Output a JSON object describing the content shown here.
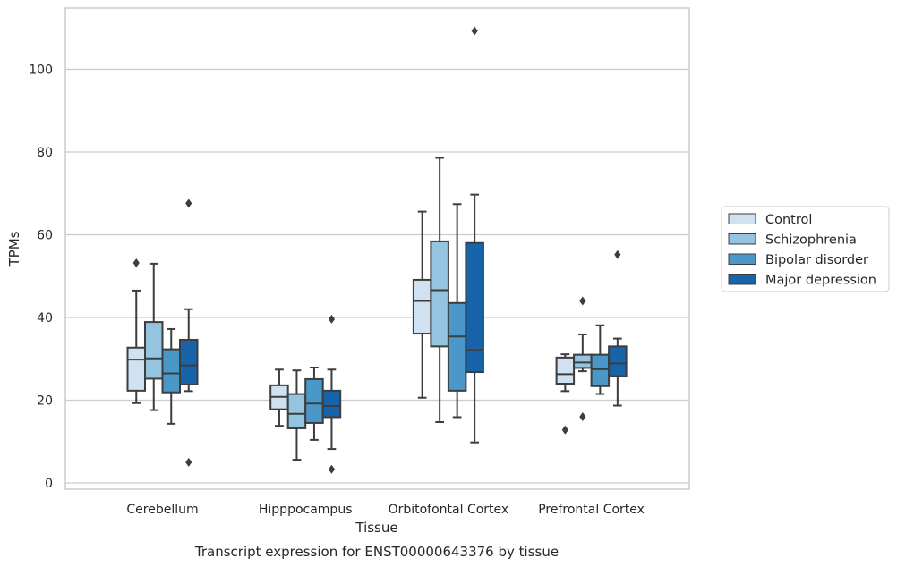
{
  "chart_data": {
    "type": "boxplot",
    "title": "Transcript expression for ENST00000643376 by tissue",
    "xlabel": "Tissue",
    "ylabel": "TPMs",
    "ylim": [
      -1.5,
      114
    ],
    "yticks": [
      0,
      20,
      40,
      60,
      80,
      100
    ],
    "grid": "y",
    "legend_placement": "right",
    "categories": [
      "Cerebellum",
      "Hipppocampus",
      "Orbitofontal Cortex",
      "Prefrontal Cortex"
    ],
    "series": [
      {
        "name": "Control",
        "color": "#d0e1f2",
        "boxes": [
          {
            "whisker_low": 19.3,
            "q1": 22.3,
            "median": 29.8,
            "q3": 32.7,
            "whisker_high": 46.5,
            "outliers": [
              53.2
            ]
          },
          {
            "whisker_low": 13.8,
            "q1": 17.8,
            "median": 20.8,
            "q3": 23.6,
            "whisker_high": 27.4,
            "outliers": []
          },
          {
            "whisker_low": 20.6,
            "q1": 36.1,
            "median": 44.0,
            "q3": 49.1,
            "whisker_high": 65.6,
            "outliers": []
          },
          {
            "whisker_low": 22.2,
            "q1": 24.0,
            "median": 26.3,
            "q3": 30.3,
            "whisker_high": 31.1,
            "outliers": [
              12.8
            ]
          }
        ]
      },
      {
        "name": "Schizophrenia",
        "color": "#94c4df",
        "boxes": [
          {
            "whisker_low": 17.6,
            "q1": 25.2,
            "median": 30.1,
            "q3": 38.9,
            "whisker_high": 53.0,
            "outliers": []
          },
          {
            "whisker_low": 5.6,
            "q1": 13.2,
            "median": 16.7,
            "q3": 21.5,
            "whisker_high": 27.2,
            "outliers": []
          },
          {
            "whisker_low": 14.7,
            "q1": 33.0,
            "median": 46.6,
            "q3": 58.4,
            "whisker_high": 78.6,
            "outliers": []
          },
          {
            "whisker_low": 27.0,
            "q1": 27.8,
            "median": 29.1,
            "q3": 31.0,
            "whisker_high": 35.9,
            "outliers": [
              16.0,
              44.0
            ]
          }
        ]
      },
      {
        "name": "Bipolar disorder",
        "color": "#4a98c9",
        "boxes": [
          {
            "whisker_low": 14.3,
            "q1": 21.9,
            "median": 26.5,
            "q3": 32.3,
            "whisker_high": 37.2,
            "outliers": []
          },
          {
            "whisker_low": 10.4,
            "q1": 14.5,
            "median": 19.2,
            "q3": 25.1,
            "whisker_high": 27.9,
            "outliers": []
          },
          {
            "whisker_low": 15.9,
            "q1": 22.3,
            "median": 35.4,
            "q3": 43.5,
            "whisker_high": 67.4,
            "outliers": []
          },
          {
            "whisker_low": 21.5,
            "q1": 23.4,
            "median": 27.5,
            "q3": 31.0,
            "whisker_high": 38.1,
            "outliers": []
          }
        ]
      },
      {
        "name": "Major depression",
        "color": "#1764ab",
        "boxes": [
          {
            "whisker_low": 22.2,
            "q1": 23.8,
            "median": 28.4,
            "q3": 34.6,
            "whisker_high": 42.0,
            "outliers": [
              5.0,
              67.6
            ]
          },
          {
            "whisker_low": 8.2,
            "q1": 15.9,
            "median": 18.6,
            "q3": 22.3,
            "whisker_high": 27.4,
            "outliers": [
              3.3,
              39.6
            ]
          },
          {
            "whisker_low": 9.8,
            "q1": 26.8,
            "median": 32.1,
            "q3": 58.0,
            "whisker_high": 69.7,
            "outliers": [
              109.3
            ]
          },
          {
            "whisker_low": 18.7,
            "q1": 25.8,
            "median": 28.9,
            "q3": 33.0,
            "whisker_high": 34.9,
            "outliers": [
              55.2
            ]
          }
        ]
      }
    ]
  }
}
